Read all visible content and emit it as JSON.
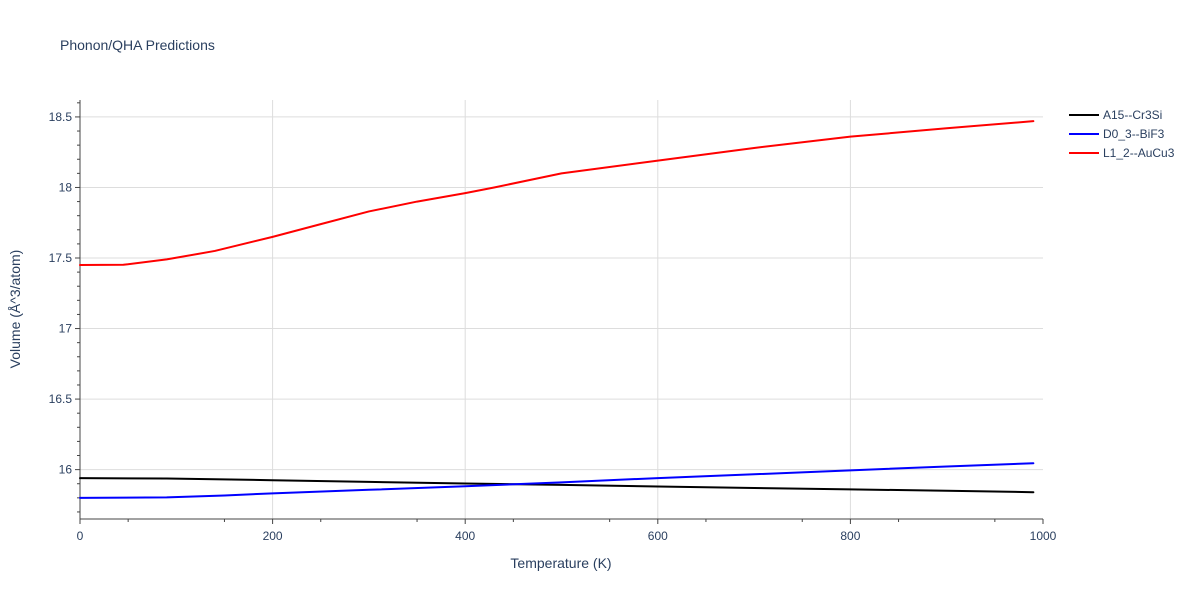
{
  "chart_data": {
    "type": "line",
    "title": "Phonon/QHA Predictions",
    "xlabel": "Temperature (K)",
    "ylabel": "Volume (Å^3/atom)",
    "xlim": [
      0,
      1000
    ],
    "ylim": [
      15.65,
      18.62
    ],
    "xticks": [
      0,
      200,
      400,
      600,
      800,
      1000
    ],
    "xtick_labels": [
      "0",
      "200",
      "400",
      "600",
      "800",
      "1000"
    ],
    "yticks": [
      16,
      16.5,
      17,
      17.5,
      18,
      18.5
    ],
    "ytick_labels": [
      "16",
      "16.5",
      "17",
      "17.5",
      "18",
      "18.5"
    ],
    "grid": true,
    "legend_position": "top-right, outside plot",
    "series": [
      {
        "name": "A15--Cr3Si",
        "color": "#000000",
        "x": [
          0,
          90,
          200,
          300,
          400,
          500,
          600,
          700,
          800,
          900,
          990
        ],
        "y": [
          15.94,
          15.937,
          15.925,
          15.913,
          15.902,
          15.892,
          15.88,
          15.87,
          15.86,
          15.85,
          15.84
        ]
      },
      {
        "name": "D0_3--BiF3",
        "color": "#0000ff",
        "x": [
          0,
          90,
          150,
          200,
          300,
          400,
          500,
          600,
          700,
          800,
          900,
          990
        ],
        "y": [
          15.8,
          15.803,
          15.817,
          15.832,
          15.857,
          15.882,
          15.91,
          15.94,
          15.967,
          15.995,
          16.022,
          16.045
        ]
      },
      {
        "name": "L1_2--AuCu3",
        "color": "#ff0000",
        "x": [
          0,
          45,
          90,
          140,
          200,
          250,
          300,
          350,
          400,
          430,
          500,
          600,
          700,
          800,
          900,
          990
        ],
        "y": [
          17.45,
          17.452,
          17.49,
          17.55,
          17.65,
          17.74,
          17.83,
          17.9,
          17.96,
          18.0,
          18.1,
          18.19,
          18.28,
          18.36,
          18.42,
          18.47
        ]
      }
    ]
  }
}
